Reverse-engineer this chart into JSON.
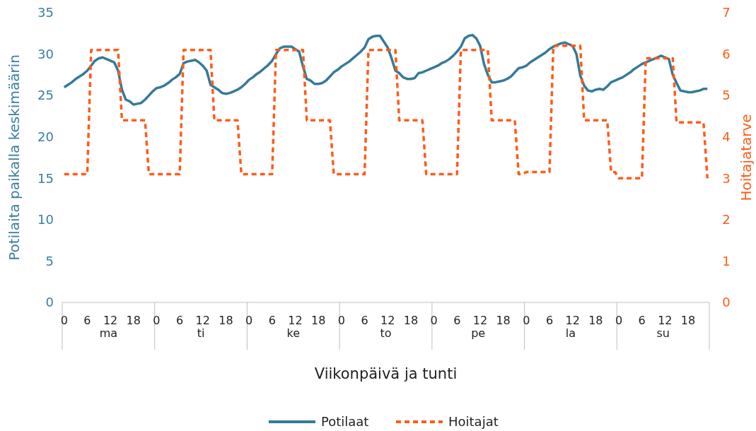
{
  "chart_data": {
    "type": "line",
    "xlabel": "Viikonpäivä ja tunti",
    "ylabel": "Potilaita paikalla keskimäärin",
    "y2label": "Hoitajatarve",
    "categories": [
      "0",
      null,
      null,
      null,
      null,
      null,
      "6",
      null,
      null,
      null,
      null,
      null,
      "12",
      null,
      null,
      null,
      null,
      null,
      "18",
      null,
      null,
      null,
      null,
      null,
      "0",
      null,
      null,
      null,
      null,
      null,
      "6",
      null,
      null,
      null,
      null,
      null,
      "12",
      null,
      null,
      null,
      null,
      null,
      "18",
      null,
      null,
      null,
      null,
      null,
      "0",
      null,
      null,
      null,
      null,
      null,
      "6",
      null,
      null,
      null,
      null,
      null,
      "12",
      null,
      null,
      null,
      null,
      null,
      "18",
      null,
      null,
      null,
      null,
      null,
      "0",
      null,
      null,
      null,
      null,
      null,
      "6",
      null,
      null,
      null,
      null,
      null,
      "12",
      null,
      null,
      null,
      null,
      null,
      "18",
      null,
      null,
      null,
      null,
      null,
      "0",
      null,
      null,
      null,
      null,
      null,
      "6",
      null,
      null,
      null,
      null,
      null,
      "12",
      null,
      null,
      null,
      null,
      null,
      "18",
      null,
      null,
      null,
      null,
      null,
      "0",
      null,
      null,
      null,
      null,
      null,
      "6",
      null,
      null,
      null,
      null,
      null,
      "12",
      null,
      null,
      null,
      null,
      null,
      "18",
      null,
      null,
      null,
      null,
      null,
      "0",
      null,
      null,
      null,
      null,
      null,
      "6",
      null,
      null,
      null,
      null,
      null,
      "12",
      null,
      null,
      null,
      null,
      null,
      "18",
      null,
      null,
      null,
      null,
      null
    ],
    "ylim": [
      0,
      35
    ],
    "yticks": [
      0,
      5,
      10,
      15,
      20,
      25,
      30,
      35
    ],
    "y2lim": [
      0,
      7
    ],
    "y2ticks": [
      0,
      1,
      2,
      3,
      4,
      5,
      6,
      7
    ],
    "annotations": [
      "ma",
      "ti",
      "ke",
      "to",
      "pe",
      "la",
      "su"
    ],
    "grid": false,
    "legend": "bottom",
    "series": [
      {
        "name": "Potilaat",
        "color": "#357a98",
        "line_style": "solid",
        "values": [
          26.0,
          26.3,
          26.6,
          27.0,
          27.3,
          27.6,
          28.0,
          28.6,
          29.2,
          29.5,
          29.6,
          29.4,
          29.2,
          29.0,
          28.0,
          25.7,
          24.5,
          24.3,
          23.9,
          24.0,
          24.1,
          24.5,
          25.0,
          25.5,
          25.9,
          26.0,
          26.2,
          26.5,
          26.9,
          27.2,
          27.6,
          28.9,
          29.1,
          29.2,
          29.3,
          29.0,
          28.6,
          28.0,
          26.3,
          26.0,
          25.7,
          25.3,
          25.2,
          25.3,
          25.5,
          25.7,
          26.0,
          26.4,
          26.9,
          27.2,
          27.6,
          27.9,
          28.3,
          28.7,
          29.2,
          30.0,
          30.7,
          30.9,
          30.9,
          30.9,
          30.6,
          30.3,
          28.5,
          27.0,
          26.8,
          26.4,
          26.4,
          26.5,
          26.8,
          27.3,
          27.8,
          28.1,
          28.5,
          28.8,
          29.1,
          29.5,
          29.9,
          30.3,
          30.8,
          31.8,
          32.1,
          32.2,
          32.2,
          31.5,
          30.8,
          29.5,
          28.0,
          27.7,
          27.2,
          27.0,
          27.0,
          27.1,
          27.7,
          27.8,
          28.0,
          28.2,
          28.4,
          28.6,
          28.9,
          29.1,
          29.4,
          29.8,
          30.3,
          30.9,
          31.9,
          32.2,
          32.3,
          31.9,
          31.0,
          28.8,
          27.5,
          26.6,
          26.6,
          26.7,
          26.8,
          27.0,
          27.3,
          27.8,
          28.3,
          28.4,
          28.6,
          29.0,
          29.3,
          29.6,
          29.9,
          30.2,
          30.6,
          30.9,
          31.1,
          31.3,
          31.4,
          31.2,
          31.0,
          30.0,
          27.4,
          26.2,
          25.6,
          25.5,
          25.7,
          25.8,
          25.7,
          26.1,
          26.6,
          26.8,
          27.0,
          27.2,
          27.5,
          27.8,
          28.2,
          28.5,
          28.8,
          29.0,
          29.2,
          29.4,
          29.6,
          29.8,
          29.6,
          29.4,
          27.5,
          26.5,
          25.6,
          25.5,
          25.4,
          25.4,
          25.5,
          25.6,
          25.8,
          25.8
        ]
      },
      {
        "name": "Hoitajat",
        "color": "#ff5b1a",
        "line_style": "dashed",
        "axis": "y2",
        "values": [
          3.1,
          3.1,
          3.1,
          3.1,
          3.1,
          3.1,
          3.1,
          6.1,
          6.1,
          6.1,
          6.1,
          6.1,
          6.1,
          6.1,
          6.1,
          4.4,
          4.4,
          4.4,
          4.4,
          4.4,
          4.4,
          4.4,
          3.1,
          3.1,
          3.1,
          3.1,
          3.1,
          3.1,
          3.1,
          3.1,
          3.1,
          6.1,
          6.1,
          6.1,
          6.1,
          6.1,
          6.1,
          6.1,
          6.1,
          4.4,
          4.4,
          4.4,
          4.4,
          4.4,
          4.4,
          4.4,
          3.1,
          3.1,
          3.1,
          3.1,
          3.1,
          3.1,
          3.1,
          3.1,
          3.1,
          6.1,
          6.1,
          6.1,
          6.1,
          6.1,
          6.1,
          6.1,
          6.1,
          4.4,
          4.4,
          4.4,
          4.4,
          4.4,
          4.4,
          4.4,
          3.1,
          3.1,
          3.1,
          3.1,
          3.1,
          3.1,
          3.1,
          3.1,
          3.1,
          6.1,
          6.1,
          6.1,
          6.1,
          6.1,
          6.1,
          6.1,
          6.1,
          4.4,
          4.4,
          4.4,
          4.4,
          4.4,
          4.4,
          4.4,
          3.1,
          3.1,
          3.1,
          3.1,
          3.1,
          3.1,
          3.1,
          3.1,
          3.1,
          6.1,
          6.1,
          6.1,
          6.1,
          6.1,
          6.1,
          6.1,
          6.1,
          4.4,
          4.4,
          4.4,
          4.4,
          4.4,
          4.4,
          4.4,
          3.1,
          3.1,
          3.15,
          3.15,
          3.15,
          3.15,
          3.15,
          3.15,
          3.15,
          6.2,
          6.2,
          6.2,
          6.2,
          6.2,
          6.2,
          6.2,
          6.2,
          4.4,
          4.4,
          4.4,
          4.4,
          4.4,
          4.4,
          4.4,
          3.15,
          3.15,
          3.0,
          3.0,
          3.0,
          3.0,
          3.0,
          3.0,
          3.0,
          5.9,
          5.9,
          5.9,
          5.9,
          5.9,
          5.9,
          5.9,
          5.9,
          4.35,
          4.35,
          4.35,
          4.35,
          4.35,
          4.35,
          4.35,
          4.35,
          3.0
        ]
      }
    ]
  }
}
